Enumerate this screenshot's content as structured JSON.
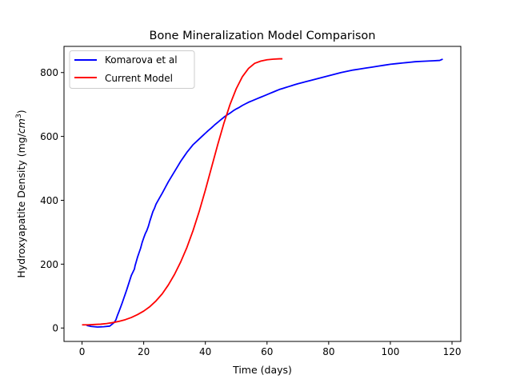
{
  "chart_data": {
    "type": "line",
    "title": "Bone Mineralization Model Comparison",
    "xlabel": "Time (days)",
    "ylabel_prefix": "Hydroxyapatite Density (mg/",
    "ylabel_unit_base": "cm",
    "ylabel_unit_exp": "3",
    "ylabel_suffix": ")",
    "xlim": [
      -5.85,
      122.85
    ],
    "ylim": [
      -42,
      882
    ],
    "xticks": [
      0,
      20,
      40,
      60,
      80,
      100,
      120
    ],
    "yticks": [
      0,
      200,
      400,
      600,
      800
    ],
    "legend_position": "upper left",
    "grid": false,
    "series": [
      {
        "name": "Komarova et al",
        "color": "#0000ff",
        "x": [
          1.5,
          3,
          5,
          7,
          9,
          10,
          10.5,
          11,
          11.5,
          12,
          12.5,
          13,
          13.5,
          14,
          14.5,
          15,
          15.5,
          16,
          16.5,
          17,
          17.2,
          17.5,
          18,
          18.5,
          19,
          19.5,
          20,
          20.5,
          21,
          21.5,
          22,
          22.5,
          23,
          23.5,
          24,
          25,
          26,
          27,
          28,
          29,
          30,
          31,
          32,
          33,
          34,
          35,
          36,
          37,
          38,
          39,
          40,
          41,
          42,
          43,
          44,
          45,
          46,
          47,
          48,
          49,
          50,
          51,
          52,
          53,
          54,
          55,
          56,
          57,
          58,
          59,
          60,
          61,
          62,
          63,
          64,
          65,
          66,
          67,
          68,
          69,
          70,
          72,
          74,
          76,
          78,
          80,
          82,
          84,
          86,
          88,
          90,
          92,
          94,
          96,
          98,
          100,
          102,
          104,
          106,
          108,
          110,
          112,
          114,
          116,
          117
        ],
        "y": [
          8,
          5,
          3,
          4,
          6,
          14,
          18,
          26,
          40,
          52,
          65,
          78,
          92,
          106,
          120,
          135,
          150,
          165,
          175,
          185,
          195,
          205,
          222,
          236,
          250,
          268,
          282,
          295,
          305,
          318,
          335,
          350,
          365,
          375,
          388,
          405,
          422,
          440,
          458,
          474,
          490,
          506,
          522,
          536,
          550,
          562,
          574,
          583,
          592,
          601,
          610,
          619,
          627,
          636,
          644,
          652,
          660,
          667,
          673,
          680,
          686,
          691,
          697,
          702,
          707,
          711,
          715,
          719,
          723,
          727,
          731,
          735,
          739,
          743,
          747,
          750,
          753,
          756,
          759,
          762,
          765,
          770,
          775,
          780,
          785,
          790,
          795,
          800,
          804,
          808,
          811,
          814,
          817,
          820,
          823,
          826,
          828,
          830,
          832,
          834,
          835,
          836,
          837,
          838,
          842
        ]
      },
      {
        "name": "Current Model",
        "color": "#ff0000",
        "x": [
          0,
          2,
          4,
          6,
          8,
          10,
          12,
          14,
          16,
          18,
          20,
          22,
          24,
          26,
          28,
          30,
          32,
          34,
          36,
          38,
          40,
          42,
          44,
          46,
          48,
          50,
          52,
          54,
          56,
          58,
          60,
          62,
          64,
          65
        ],
        "y": [
          10,
          10,
          11,
          12,
          14,
          17,
          21,
          26,
          33,
          42,
          53,
          67,
          85,
          107,
          135,
          168,
          207,
          252,
          305,
          365,
          432,
          503,
          574,
          641,
          700,
          749,
          787,
          813,
          829,
          836,
          840,
          842,
          843,
          843
        ]
      }
    ]
  }
}
